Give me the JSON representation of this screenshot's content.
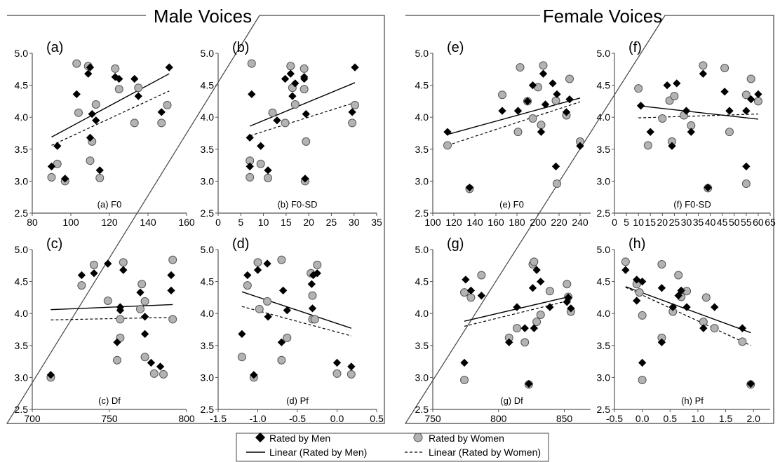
{
  "groups": {
    "male": {
      "title": "Male Voices"
    },
    "female": {
      "title": "Female Voices"
    }
  },
  "legend": {
    "men": "Rated by Men",
    "women": "Rated by Women",
    "linear_men": "Linear (Rated by Men)",
    "linear_women": "Linear (Rated by Women)"
  },
  "colors": {
    "men": "#000000",
    "women": "#b3b3b3",
    "women_edge": "#555555",
    "axis": "#555555"
  },
  "chart_data": [
    {
      "type": "scatter",
      "id": "a",
      "group": "male",
      "panel_label": "(a)",
      "xlabel": "(a) F0",
      "xlim": [
        80,
        160
      ],
      "ylim": [
        2.5,
        5.0
      ],
      "xticks": [
        "80",
        "100",
        "120",
        "140",
        "160"
      ],
      "yticks": [
        "2.5",
        "3.0",
        "3.5",
        "4.0",
        "4.5",
        "5.0"
      ],
      "men": [
        [
          90,
          3.23
        ],
        [
          93,
          3.55
        ],
        [
          97,
          3.04
        ],
        [
          103,
          4.36
        ],
        [
          109,
          4.68
        ],
        [
          110,
          4.78
        ],
        [
          111,
          4.05
        ],
        [
          113,
          3.95
        ],
        [
          110,
          3.68
        ],
        [
          115,
          3.17
        ],
        [
          123,
          4.63
        ],
        [
          125,
          4.6
        ],
        [
          133,
          4.6
        ],
        [
          135,
          4.33
        ],
        [
          147,
          4.08
        ],
        [
          151,
          4.78
        ]
      ],
      "women": [
        [
          90,
          3.06
        ],
        [
          93,
          3.27
        ],
        [
          97,
          3.0
        ],
        [
          103,
          4.84
        ],
        [
          104,
          4.07
        ],
        [
          109,
          4.8
        ],
        [
          110,
          3.32
        ],
        [
          111,
          3.62
        ],
        [
          113,
          4.2
        ],
        [
          115,
          3.05
        ],
        [
          123,
          4.76
        ],
        [
          125,
          4.44
        ],
        [
          133,
          3.91
        ],
        [
          135,
          4.46
        ],
        [
          147,
          3.91
        ],
        [
          150,
          4.19
        ]
      ],
      "fit_men": [
        [
          90,
          3.69
        ],
        [
          151,
          4.68
        ]
      ],
      "fit_women": [
        [
          90,
          3.56
        ],
        [
          151,
          4.41
        ]
      ]
    },
    {
      "type": "scatter",
      "id": "b",
      "group": "male",
      "panel_label": "(b)",
      "xlabel": "(b) F0-SD",
      "xlim": [
        0,
        35
      ],
      "ylim": [
        2.5,
        5.0
      ],
      "xticks": [
        "0",
        "5",
        "10",
        "15",
        "20",
        "25",
        "30",
        "35"
      ],
      "yticks": [
        "2.5",
        "3.0",
        "3.5",
        "4.0",
        "4.5",
        "5.0"
      ],
      "men": [
        [
          7,
          3.23
        ],
        [
          7,
          3.68
        ],
        [
          7.4,
          4.36
        ],
        [
          9.4,
          3.55
        ],
        [
          11,
          3.17
        ],
        [
          13,
          3.95
        ],
        [
          14.8,
          4.6
        ],
        [
          16,
          4.68
        ],
        [
          16.4,
          4.33
        ],
        [
          17,
          4.53
        ],
        [
          19,
          4.63
        ],
        [
          19,
          4.6
        ],
        [
          19.2,
          3.04
        ],
        [
          19.4,
          4.05
        ],
        [
          29.6,
          4.08
        ],
        [
          30.2,
          4.78
        ]
      ],
      "women": [
        [
          7,
          3.06
        ],
        [
          7,
          3.32
        ],
        [
          7.4,
          4.84
        ],
        [
          9.4,
          3.27
        ],
        [
          11,
          3.05
        ],
        [
          12,
          4.07
        ],
        [
          14.8,
          3.91
        ],
        [
          16,
          4.8
        ],
        [
          16.4,
          4.46
        ],
        [
          17,
          4.2
        ],
        [
          19,
          4.76
        ],
        [
          19,
          4.44
        ],
        [
          19.2,
          3.0
        ],
        [
          19.4,
          3.62
        ],
        [
          29.6,
          3.91
        ],
        [
          30.2,
          4.19
        ]
      ],
      "fit_men": [
        [
          7,
          3.86
        ],
        [
          30.2,
          4.54
        ]
      ],
      "fit_women": [
        [
          7,
          3.71
        ],
        [
          30.2,
          4.23
        ]
      ]
    },
    {
      "type": "scatter",
      "id": "c",
      "group": "male",
      "panel_label": "(c)",
      "xlabel": "(c) Df",
      "xlim": [
        700,
        800
      ],
      "ylim": [
        2.5,
        5.0
      ],
      "xticks": [
        "700",
        "750",
        "800"
      ],
      "yticks": [
        "2.5",
        "3.0",
        "3.5",
        "4.0",
        "4.5",
        "5.0"
      ],
      "men": [
        [
          712,
          3.04
        ],
        [
          732,
          4.6
        ],
        [
          740,
          4.63
        ],
        [
          749,
          4.78
        ],
        [
          755,
          3.55
        ],
        [
          757,
          4.05
        ],
        [
          757,
          4.1
        ],
        [
          759,
          4.68
        ],
        [
          770,
          4.33
        ],
        [
          773,
          3.68
        ],
        [
          773,
          3.95
        ],
        [
          777,
          3.23
        ],
        [
          783,
          3.17
        ],
        [
          790,
          4.6
        ],
        [
          790,
          4.36
        ]
      ],
      "women": [
        [
          712,
          3.0
        ],
        [
          732,
          4.44
        ],
        [
          740,
          4.76
        ],
        [
          749,
          4.2
        ],
        [
          755,
          3.27
        ],
        [
          757,
          3.62
        ],
        [
          757,
          3.91
        ],
        [
          759,
          4.8
        ],
        [
          770,
          4.07
        ],
        [
          771,
          4.46
        ],
        [
          773,
          4.19
        ],
        [
          773,
          3.32
        ],
        [
          779,
          3.06
        ],
        [
          785,
          3.05
        ],
        [
          791,
          3.91
        ],
        [
          791,
          4.84
        ]
      ],
      "fit_men": [
        [
          712,
          4.06
        ],
        [
          791,
          4.14
        ]
      ],
      "fit_women": [
        [
          712,
          3.9
        ],
        [
          791,
          3.94
        ]
      ]
    },
    {
      "type": "scatter",
      "id": "d",
      "group": "male",
      "panel_label": "(d)",
      "xlabel": "(d) Pf",
      "xlim": [
        -1.5,
        0.5
      ],
      "ylim": [
        2.5,
        5.0
      ],
      "xticks": [
        "-1.5",
        "-1.0",
        "-0.5",
        "0.0",
        "0.5"
      ],
      "yticks": [
        "2.5",
        "3.0",
        "3.5",
        "4.0",
        "4.5",
        "5.0"
      ],
      "men": [
        [
          -1.2,
          3.68
        ],
        [
          -1.13,
          4.6
        ],
        [
          -1.05,
          3.04
        ],
        [
          -1.0,
          4.68
        ],
        [
          -0.88,
          4.78
        ],
        [
          -0.87,
          3.95
        ],
        [
          -0.7,
          3.55
        ],
        [
          -0.68,
          4.36
        ],
        [
          -0.63,
          4.05
        ],
        [
          -0.32,
          4.46
        ],
        [
          -0.31,
          4.08
        ],
        [
          -0.3,
          4.6
        ],
        [
          -0.25,
          4.63
        ],
        [
          0.0,
          3.23
        ],
        [
          0.18,
          3.17
        ]
      ],
      "women": [
        [
          -1.2,
          3.32
        ],
        [
          -1.13,
          4.44
        ],
        [
          -1.05,
          3.0
        ],
        [
          -1.0,
          4.8
        ],
        [
          -0.98,
          4.07
        ],
        [
          -0.88,
          4.19
        ],
        [
          -0.7,
          4.84
        ],
        [
          -0.7,
          3.27
        ],
        [
          -0.63,
          3.62
        ],
        [
          -0.33,
          4.63
        ],
        [
          -0.31,
          4.28
        ],
        [
          -0.31,
          3.91
        ],
        [
          -0.28,
          3.91
        ],
        [
          -0.25,
          4.76
        ],
        [
          0.0,
          3.06
        ],
        [
          0.18,
          3.05
        ]
      ],
      "fit_men": [
        [
          -1.2,
          4.34
        ],
        [
          0.18,
          3.77
        ]
      ],
      "fit_women": [
        [
          -1.2,
          4.11
        ],
        [
          0.18,
          3.65
        ]
      ]
    },
    {
      "type": "scatter",
      "id": "e",
      "group": "female",
      "panel_label": "(e)",
      "xlabel": "(e) F0",
      "xlim": [
        100,
        250
      ],
      "ylim": [
        2.5,
        5.0
      ],
      "xticks": [
        "100",
        "120",
        "140",
        "160",
        "180",
        "200",
        "220",
        "240"
      ],
      "yticks": [
        "2.5",
        "3.0",
        "3.5",
        "4.0",
        "4.5",
        "5.0"
      ],
      "men": [
        [
          114,
          3.77
        ],
        [
          135,
          2.9
        ],
        [
          166,
          4.1
        ],
        [
          181,
          4.1
        ],
        [
          190,
          4.25
        ],
        [
          195,
          4.5
        ],
        [
          203,
          3.77
        ],
        [
          205,
          4.68
        ],
        [
          207,
          4.2
        ],
        [
          214,
          4.53
        ],
        [
          217,
          3.23
        ],
        [
          218,
          4.36
        ],
        [
          227,
          4.08
        ],
        [
          230,
          4.28
        ],
        [
          240,
          3.55
        ]
      ],
      "women": [
        [
          114,
          3.56
        ],
        [
          135,
          2.88
        ],
        [
          166,
          4.35
        ],
        [
          181,
          3.77
        ],
        [
          183,
          4.78
        ],
        [
          190,
          4.25
        ],
        [
          195,
          3.98
        ],
        [
          200,
          4.47
        ],
        [
          203,
          3.88
        ],
        [
          205,
          4.81
        ],
        [
          217,
          4.26
        ],
        [
          218,
          2.96
        ],
        [
          227,
          4.03
        ],
        [
          230,
          4.6
        ],
        [
          240,
          3.62
        ]
      ],
      "fit_men": [
        [
          114,
          3.73
        ],
        [
          240,
          4.3
        ]
      ],
      "fit_women": [
        [
          114,
          3.56
        ],
        [
          240,
          4.24
        ]
      ]
    },
    {
      "type": "scatter",
      "id": "f",
      "group": "female",
      "panel_label": "(f)",
      "xlabel": "(f) F0-SD",
      "xlim": [
        0,
        65
      ],
      "ylim": [
        2.5,
        5.0
      ],
      "xticks": [
        "0",
        "5",
        "10",
        "15",
        "20",
        "25",
        "30",
        "35",
        "40",
        "45",
        "50",
        "55",
        "60",
        "65"
      ],
      "yticks": [
        "2.5",
        "3.0",
        "3.5",
        "4.0",
        "4.5",
        "5.0"
      ],
      "men": [
        [
          11,
          4.18
        ],
        [
          15,
          3.77
        ],
        [
          22,
          4.5
        ],
        [
          24,
          3.55
        ],
        [
          26,
          4.53
        ],
        [
          30,
          4.1
        ],
        [
          32,
          3.77
        ],
        [
          37,
          4.68
        ],
        [
          39,
          2.9
        ],
        [
          46,
          4.4
        ],
        [
          48,
          4.1
        ],
        [
          55,
          3.23
        ],
        [
          55,
          4.1
        ],
        [
          57,
          4.28
        ],
        [
          60,
          4.36
        ]
      ],
      "women": [
        [
          10,
          4.45
        ],
        [
          14,
          3.56
        ],
        [
          20,
          3.98
        ],
        [
          23,
          4.26
        ],
        [
          24,
          3.62
        ],
        [
          25,
          4.33
        ],
        [
          29,
          4.03
        ],
        [
          32,
          3.87
        ],
        [
          37,
          4.81
        ],
        [
          39,
          2.89
        ],
        [
          46,
          4.77
        ],
        [
          48,
          3.77
        ],
        [
          55,
          2.96
        ],
        [
          55,
          4.35
        ],
        [
          57,
          4.6
        ],
        [
          60,
          4.25
        ]
      ],
      "fit_men": [
        [
          10,
          4.18
        ],
        [
          60,
          3.97
        ]
      ],
      "fit_women": [
        [
          10,
          3.99
        ],
        [
          60,
          4.05
        ]
      ]
    },
    {
      "type": "scatter",
      "id": "g",
      "group": "female",
      "panel_label": "(g)",
      "xlabel": "(g) Df",
      "xlim": [
        750,
        870
      ],
      "ylim": [
        2.5,
        5.0
      ],
      "xticks": [
        "750",
        "800",
        "850"
      ],
      "yticks": [
        "2.5",
        "3.0",
        "3.5",
        "4.0",
        "4.5",
        "5.0"
      ],
      "men": [
        [
          774,
          3.23
        ],
        [
          775,
          4.53
        ],
        [
          779,
          4.36
        ],
        [
          787,
          4.28
        ],
        [
          808,
          3.55
        ],
        [
          814,
          4.1
        ],
        [
          820,
          3.77
        ],
        [
          823,
          2.9
        ],
        [
          826,
          4.4
        ],
        [
          827,
          3.77
        ],
        [
          829,
          4.68
        ],
        [
          832,
          4.5
        ],
        [
          839,
          4.1
        ],
        [
          852,
          4.18
        ],
        [
          853,
          4.25
        ],
        [
          855,
          4.08
        ]
      ],
      "women": [
        [
          774,
          2.96
        ],
        [
          774,
          4.33
        ],
        [
          779,
          4.25
        ],
        [
          787,
          4.6
        ],
        [
          808,
          3.62
        ],
        [
          814,
          3.77
        ],
        [
          820,
          3.55
        ],
        [
          823,
          2.89
        ],
        [
          826,
          4.77
        ],
        [
          827,
          4.81
        ],
        [
          829,
          3.87
        ],
        [
          832,
          3.98
        ],
        [
          839,
          4.35
        ],
        [
          852,
          4.46
        ],
        [
          853,
          4.26
        ],
        [
          855,
          4.03
        ]
      ],
      "fit_men": [
        [
          774,
          3.88
        ],
        [
          855,
          4.27
        ]
      ],
      "fit_women": [
        [
          774,
          3.8
        ],
        [
          855,
          4.21
        ]
      ]
    },
    {
      "type": "scatter",
      "id": "h",
      "group": "female",
      "panel_label": "(h)",
      "xlabel": "(h) Pf",
      "xlim": [
        -0.5,
        2.3
      ],
      "ylim": [
        2.5,
        5.0
      ],
      "xticks": [
        "-0.5",
        "0.0",
        "0.5",
        "1.0",
        "1.5",
        "2.0"
      ],
      "yticks": [
        "2.5",
        "3.0",
        "3.5",
        "4.0",
        "4.5",
        "5.0"
      ],
      "men": [
        [
          -0.3,
          4.68
        ],
        [
          -0.1,
          4.53
        ],
        [
          -0.1,
          4.2
        ],
        [
          0.0,
          4.5
        ],
        [
          0.0,
          3.23
        ],
        [
          0.35,
          3.55
        ],
        [
          0.35,
          4.4
        ],
        [
          0.55,
          4.1
        ],
        [
          0.65,
          4.28
        ],
        [
          0.7,
          4.36
        ],
        [
          0.8,
          4.1
        ],
        [
          1.1,
          3.77
        ],
        [
          1.3,
          4.1
        ],
        [
          1.8,
          3.77
        ],
        [
          1.95,
          2.9
        ]
      ],
      "women": [
        [
          -0.3,
          4.81
        ],
        [
          -0.1,
          4.46
        ],
        [
          -0.05,
          4.33
        ],
        [
          0.0,
          3.97
        ],
        [
          0.0,
          2.96
        ],
        [
          0.35,
          3.62
        ],
        [
          0.35,
          4.77
        ],
        [
          0.55,
          4.03
        ],
        [
          0.65,
          4.6
        ],
        [
          0.7,
          4.26
        ],
        [
          0.8,
          4.35
        ],
        [
          1.1,
          3.87
        ],
        [
          1.15,
          4.25
        ],
        [
          1.3,
          3.77
        ],
        [
          1.8,
          3.56
        ],
        [
          1.95,
          2.89
        ]
      ],
      "fit_men": [
        [
          -0.3,
          4.42
        ],
        [
          1.95,
          3.7
        ]
      ],
      "fit_women": [
        [
          -0.3,
          4.41
        ],
        [
          1.95,
          3.5
        ]
      ]
    }
  ]
}
